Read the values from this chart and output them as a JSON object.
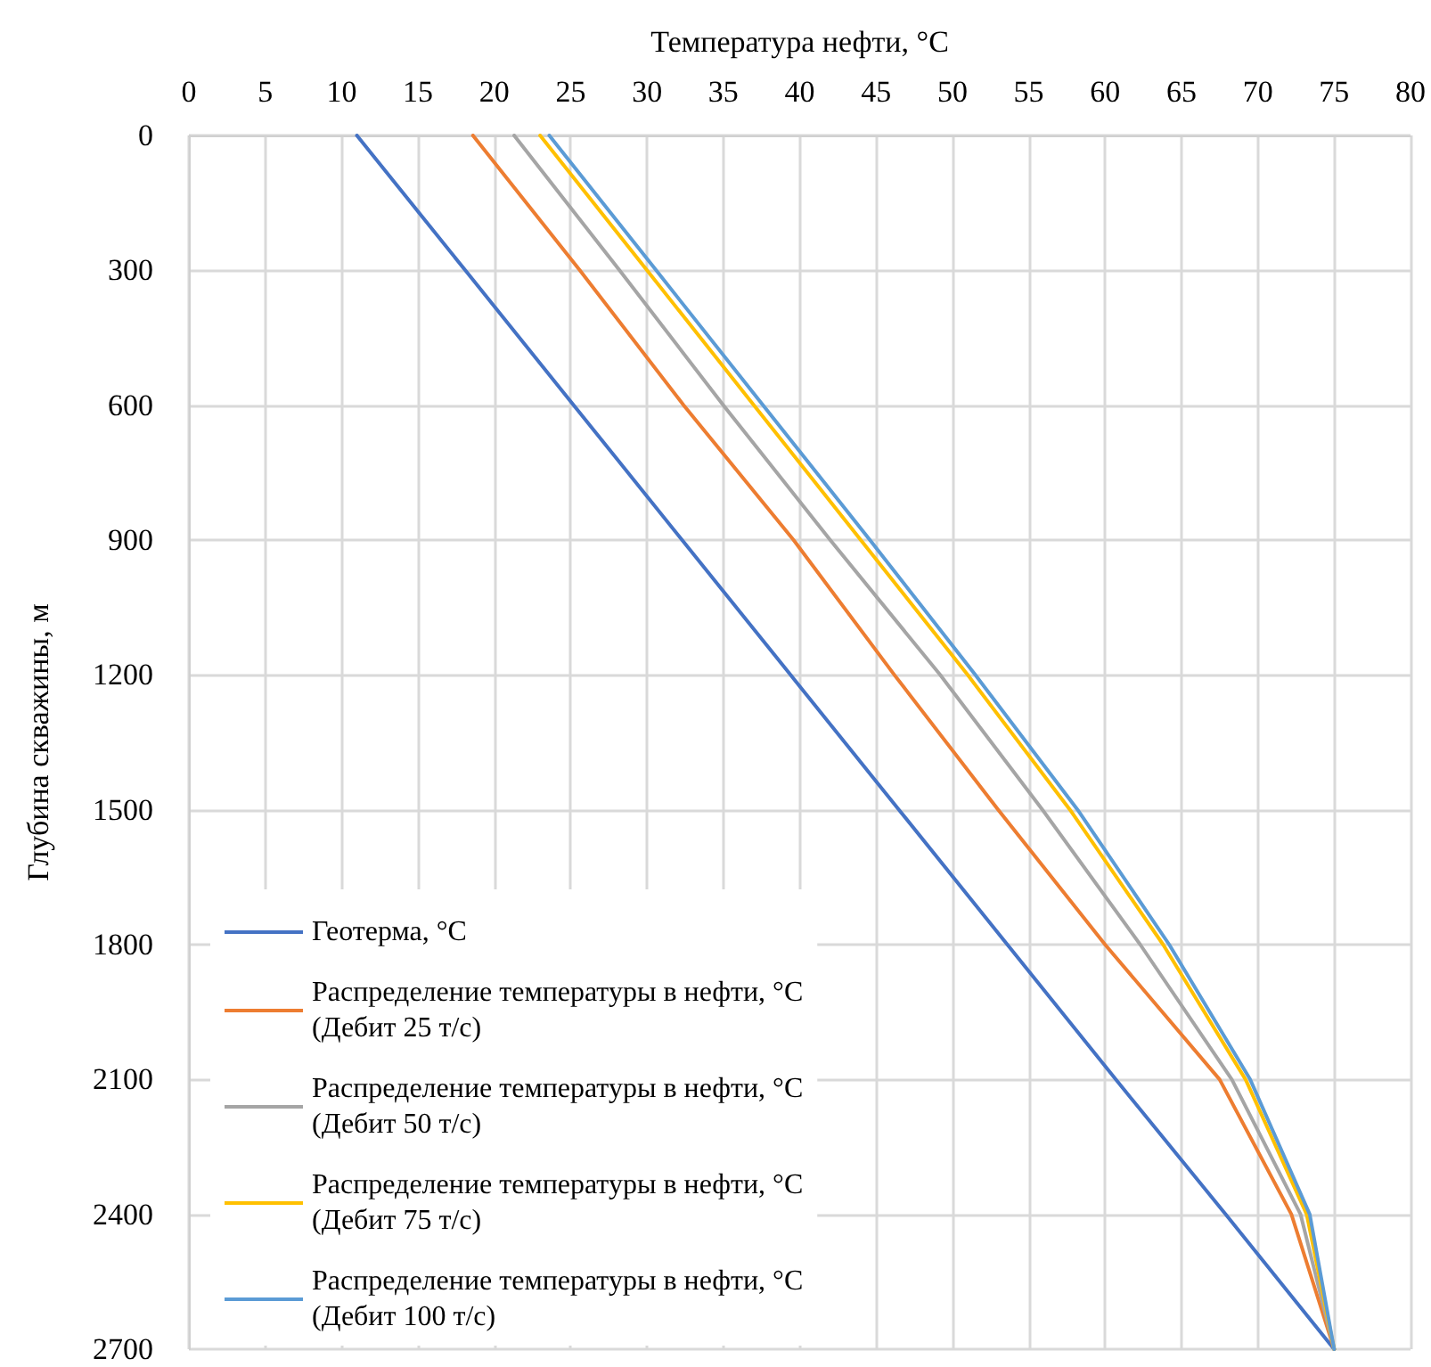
{
  "chart_data": {
    "type": "line",
    "xlabel": "Температура нефти, °С",
    "ylabel": "Глубина скважины, м",
    "xlim": [
      0,
      80
    ],
    "xticks": [
      0,
      5,
      10,
      15,
      20,
      25,
      30,
      35,
      40,
      45,
      50,
      55,
      60,
      65,
      70,
      75,
      80
    ],
    "ylim": [
      2700,
      0
    ],
    "yticks": [
      0,
      300,
      600,
      900,
      1200,
      1500,
      1800,
      2100,
      2400,
      2700
    ],
    "grid": true,
    "legend": "bottom left",
    "marker": "none",
    "line_style": "solid",
    "series": [
      {
        "name": "Геотерма, °С",
        "color": "#4472c4",
        "x": [
          11,
          18.1,
          25.2,
          32.3,
          39.4,
          46.5,
          53.6,
          60.7,
          67.9,
          75
        ],
        "values": [
          0,
          300,
          600,
          900,
          1200,
          1500,
          1800,
          2100,
          2400,
          2700
        ]
      },
      {
        "name": "Распределение температуры в нефти, °С (Дебит 25 т/с)",
        "color": "#ed7d31",
        "x": [
          18.6,
          25.6,
          32.4,
          39.6,
          46.2,
          53.0,
          60.0,
          67.5,
          72.2,
          75
        ],
        "values": [
          0,
          300,
          600,
          900,
          1200,
          1500,
          1800,
          2100,
          2400,
          2700
        ]
      },
      {
        "name": "Распределение температуры в нефти, °С (Дебит 50 т/с)",
        "color": "#a5a5a5",
        "x": [
          21.3,
          28.2,
          35.0,
          42.0,
          49.2,
          55.9,
          62.3,
          68.3,
          72.8,
          75
        ],
        "values": [
          0,
          300,
          600,
          900,
          1200,
          1500,
          1800,
          2100,
          2400,
          2700
        ]
      },
      {
        "name": "Распределение температуры в нефти, °С (Дебит 75 т/с)",
        "color": "#ffc000",
        "x": [
          23.0,
          30.0,
          37.0,
          44.0,
          51.0,
          57.7,
          63.8,
          69.2,
          73.2,
          75
        ],
        "values": [
          0,
          300,
          600,
          900,
          1200,
          1500,
          1800,
          2100,
          2400,
          2700
        ]
      },
      {
        "name": "Распределение температуры в нефти, °С (Дебит 100 т/с)",
        "color": "#5b9bd5",
        "x": [
          23.6,
          30.6,
          37.6,
          44.6,
          51.5,
          58.2,
          64.2,
          69.5,
          73.4,
          75
        ],
        "values": [
          0,
          300,
          600,
          900,
          1200,
          1500,
          1800,
          2100,
          2400,
          2700
        ]
      }
    ]
  }
}
